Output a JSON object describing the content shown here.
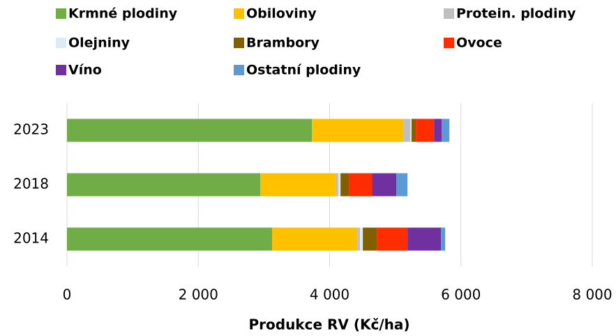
{
  "chart_data": {
    "type": "stacked_barh",
    "x_label": "Produkce RV (Kč/ha)",
    "categories": [
      "2023",
      "2018",
      "2014"
    ],
    "series": [
      {
        "name": "Krmné plodiny",
        "color": "#70ad47",
        "values": [
          3730,
          2944,
          3124
        ]
      },
      {
        "name": "Obiloviny",
        "color": "#ffc000",
        "values": [
          1392,
          1147,
          1297
        ]
      },
      {
        "name": "Protein. plodiny",
        "color": "#bfbfbf",
        "values": [
          106,
          43,
          42
        ]
      },
      {
        "name": "Olejniny",
        "color": "#ddebf7",
        "values": [
          20,
          32,
          43
        ]
      },
      {
        "name": "Brambory",
        "color": "#806000",
        "values": [
          65,
          127,
          212
        ]
      },
      {
        "name": "Ovoce",
        "color": "#ff2d00",
        "values": [
          277,
          351,
          468
        ]
      },
      {
        "name": "Víno",
        "color": "#7030a0",
        "values": [
          117,
          372,
          510
        ]
      },
      {
        "name": "Ostatní plodiny",
        "color": "#5b9bd5",
        "values": [
          117,
          170,
          64
        ]
      }
    ],
    "xlim": [
      0,
      8000
    ],
    "xticks": [
      0,
      {
        "value": 2000,
        "label": "2 000"
      },
      {
        "value": 4000,
        "label": "4 000"
      },
      {
        "value": 6000,
        "label": "6 000"
      },
      {
        "value": 8000,
        "label": "8 000"
      }
    ],
    "grid": true,
    "legend": "top"
  }
}
